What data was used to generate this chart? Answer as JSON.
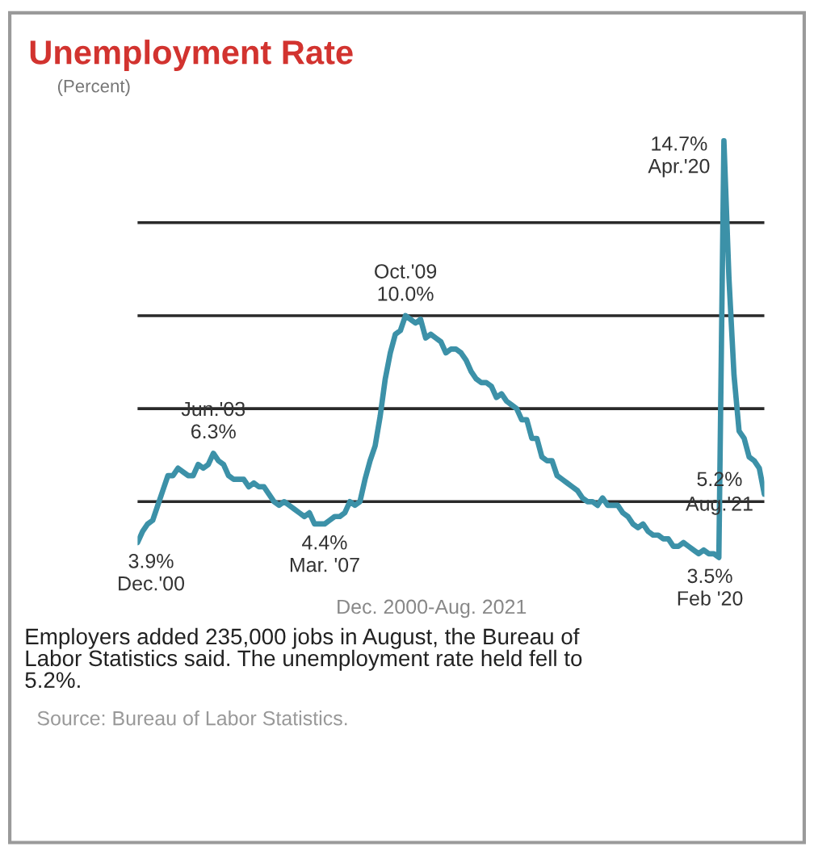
{
  "chart_data": {
    "type": "line",
    "title": "Unemployment Rate",
    "ylabel": "(Percent)",
    "categories": [
      null,
      null,
      null,
      null,
      null,
      null,
      null,
      null,
      null,
      null,
      null,
      null,
      null,
      null,
      null,
      null,
      null,
      null,
      null,
      null,
      null,
      null,
      null,
      null,
      null,
      null,
      null,
      null,
      null,
      null,
      null,
      null,
      null,
      null,
      null,
      null,
      null,
      null,
      null,
      null,
      null,
      null,
      null,
      null,
      null,
      null,
      null,
      null,
      null,
      null,
      null,
      null,
      null,
      null,
      null,
      null,
      null,
      null,
      null,
      null,
      null,
      null,
      null,
      null,
      null,
      null,
      null,
      null,
      null,
      null,
      null,
      null,
      null,
      null,
      null,
      null,
      null,
      null,
      null,
      null,
      null,
      null,
      null,
      null,
      null,
      null,
      null,
      null,
      null,
      null,
      null,
      null,
      null,
      null,
      null,
      null,
      null,
      null,
      null,
      null,
      null,
      null,
      null,
      null,
      null,
      null,
      null,
      null,
      null,
      null,
      null,
      null,
      null,
      null,
      null,
      null,
      null,
      null,
      null,
      null,
      null,
      null,
      null,
      null,
      null
    ],
    "series": [
      {
        "color": "#3c91a8",
        "values": [
          3.9,
          4.2,
          4.4,
          4.5,
          4.9,
          5.3,
          5.7,
          5.7,
          5.9,
          5.8,
          5.7,
          5.7,
          6.0,
          5.9,
          6.0,
          6.3,
          6.1,
          6.0,
          5.7,
          5.6,
          5.6,
          5.6,
          5.4,
          5.5,
          5.4,
          5.4,
          5.2,
          5.0,
          4.9,
          5.0,
          4.9,
          4.8,
          4.7,
          4.6,
          4.7,
          4.4,
          4.4,
          4.4,
          4.5,
          4.6,
          4.6,
          4.7,
          5.0,
          4.9,
          5.0,
          5.6,
          6.1,
          6.5,
          7.3,
          8.3,
          9.0,
          9.5,
          9.6,
          10.0,
          9.9,
          9.8,
          9.9,
          9.4,
          9.5,
          9.4,
          9.3,
          9.0,
          9.1,
          9.1,
          9.0,
          8.8,
          8.5,
          8.3,
          8.2,
          8.2,
          8.1,
          7.8,
          7.9,
          7.7,
          7.6,
          7.5,
          7.2,
          7.2,
          6.7,
          6.7,
          6.2,
          6.1,
          6.1,
          5.7,
          5.6,
          5.5,
          5.4,
          5.3,
          5.1,
          5.0,
          5.0,
          4.9,
          5.1,
          4.9,
          4.9,
          4.9,
          4.7,
          4.6,
          4.4,
          4.3,
          4.4,
          4.2,
          4.1,
          4.1,
          4.0,
          4.0,
          3.8,
          3.8,
          3.9,
          3.8,
          3.7,
          3.6,
          3.7,
          3.6,
          3.6,
          3.5,
          14.7,
          11.0,
          8.4,
          6.9,
          6.7,
          6.2,
          6.1,
          5.9,
          5.2
        ],
        "value_labels": [
          "3.9%",
          null,
          null,
          null,
          null,
          null,
          null,
          null,
          null,
          null,
          null,
          null,
          null,
          null,
          null,
          "6.3%",
          null,
          null,
          null,
          null,
          null,
          null,
          null,
          null,
          null,
          null,
          null,
          null,
          null,
          null,
          null,
          null,
          null,
          null,
          null,
          null,
          null,
          "4.4%",
          null,
          null,
          null,
          null,
          null,
          null,
          null,
          null,
          null,
          null,
          null,
          null,
          null,
          null,
          null,
          "10.0%",
          null,
          null,
          null,
          null,
          null,
          null,
          null,
          null,
          null,
          null,
          null,
          null,
          null,
          null,
          null,
          null,
          null,
          null,
          null,
          null,
          null,
          null,
          null,
          null,
          null,
          null,
          null,
          null,
          null,
          null,
          null,
          null,
          null,
          null,
          null,
          null,
          null,
          null,
          null,
          null,
          null,
          null,
          null,
          null,
          null,
          null,
          null,
          null,
          null,
          null,
          null,
          null,
          null,
          null,
          null,
          null,
          null,
          null,
          null,
          null,
          null,
          "3.5%",
          "14.7%",
          null,
          null,
          null,
          null,
          null,
          null,
          null,
          "5.2%"
        ]
      }
    ],
    "ref_lines": [
      {
        "axis": "y",
        "value": 5,
        "color": "#2a2a2a"
      },
      {
        "axis": "y",
        "value": 7.5,
        "color": "#2a2a2a"
      },
      {
        "axis": "y",
        "value": 10,
        "color": "#2a2a2a"
      },
      {
        "axis": "y",
        "value": 12.5,
        "color": "#2a2a2a"
      }
    ],
    "line_style": "solid",
    "annotations": [
      "Dec.'00",
      "Jun.'03",
      "Mar. '07",
      "Oct.'09",
      "Feb '20",
      "Apr.'20",
      "Aug.'21",
      "Dec. 2000-Aug. 2021",
      "Employers added 235,000 jobs in August, the Bureau of\nLabor Statistics said. The unemployment rate held fell to\n5.2%.",
      "Source: Bureau of Labor Statistics."
    ]
  }
}
